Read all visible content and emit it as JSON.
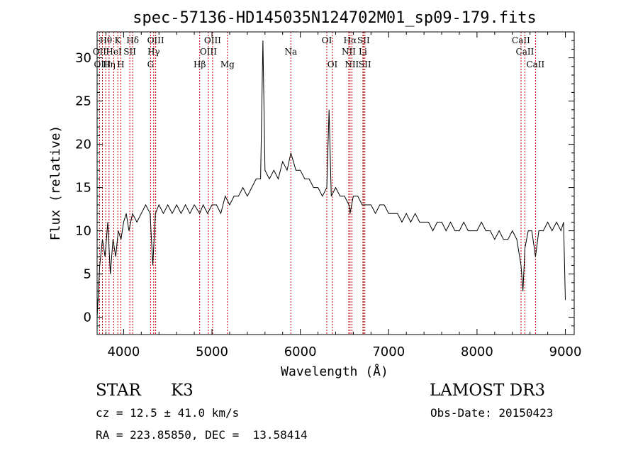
{
  "chart_data": {
    "type": "line",
    "title": "spec-57136-HD145035N124702M01_sp09-179.fits",
    "xlabel": "Wavelength (Å)",
    "ylabel": "Flux (relative)",
    "xlim": [
      3700,
      9100
    ],
    "ylim": [
      -2,
      33
    ],
    "xticks": [
      4000,
      5000,
      6000,
      7000,
      8000,
      9000
    ],
    "yticks": [
      0,
      5,
      10,
      15,
      20,
      25,
      30
    ],
    "grid": false,
    "legend": "none",
    "series": [
      {
        "name": "flux",
        "x": [
          3700,
          3730,
          3760,
          3790,
          3820,
          3850,
          3880,
          3910,
          3940,
          3970,
          4000,
          4030,
          4060,
          4100,
          4150,
          4200,
          4250,
          4300,
          4330,
          4360,
          4400,
          4450,
          4500,
          4550,
          4600,
          4650,
          4700,
          4750,
          4800,
          4861,
          4900,
          4950,
          5000,
          5050,
          5100,
          5150,
          5200,
          5250,
          5300,
          5350,
          5400,
          5450,
          5500,
          5550,
          5577,
          5600,
          5650,
          5700,
          5750,
          5800,
          5850,
          5893,
          5950,
          6000,
          6050,
          6100,
          6150,
          6200,
          6250,
          6300,
          6325,
          6350,
          6400,
          6450,
          6500,
          6550,
          6563,
          6600,
          6650,
          6700,
          6750,
          6800,
          6850,
          6900,
          6950,
          7000,
          7050,
          7100,
          7150,
          7200,
          7250,
          7300,
          7350,
          7400,
          7450,
          7500,
          7550,
          7600,
          7650,
          7700,
          7750,
          7800,
          7850,
          7900,
          7950,
          8000,
          8050,
          8100,
          8150,
          8200,
          8250,
          8300,
          8350,
          8400,
          8450,
          8498,
          8520,
          8542,
          8580,
          8620,
          8662,
          8700,
          8750,
          8800,
          8850,
          8900,
          8950,
          8980,
          9000
        ],
        "y": [
          0,
          6,
          9,
          7,
          11,
          5,
          9,
          7,
          10,
          9,
          11,
          12,
          10,
          12,
          11,
          12,
          13,
          12,
          6,
          12,
          13,
          12,
          13,
          12,
          13,
          12,
          13,
          12,
          13,
          12,
          13,
          12,
          13,
          13,
          12,
          14,
          13,
          14,
          14,
          15,
          14,
          15,
          16,
          16,
          32,
          17,
          16,
          17,
          16,
          18,
          17,
          19,
          17,
          17,
          16,
          16,
          15,
          15,
          14,
          15,
          24,
          14,
          15,
          14,
          14,
          13,
          12,
          14,
          14,
          13,
          13,
          13,
          12,
          13,
          13,
          12,
          12,
          12,
          11,
          12,
          11,
          12,
          11,
          11,
          11,
          10,
          11,
          11,
          10,
          11,
          10,
          10,
          11,
          10,
          10,
          10,
          11,
          10,
          10,
          9,
          10,
          9,
          9,
          10,
          9,
          6,
          3,
          8,
          10,
          10,
          7,
          10,
          10,
          11,
          10,
          11,
          10,
          11,
          2
        ]
      }
    ],
    "line_markers": [
      {
        "label": "Hθ",
        "x": 3798,
        "row": 1
      },
      {
        "label": "OII",
        "x": 3727,
        "row": 2
      },
      {
        "label": "OIII",
        "x": 3760,
        "row": 3
      },
      {
        "label": "Hη",
        "x": 3835,
        "row": 3
      },
      {
        "label": "HeI",
        "x": 3889,
        "row": 2
      },
      {
        "label": "K",
        "x": 3934,
        "row": 1
      },
      {
        "label": "H",
        "x": 3968,
        "row": 3
      },
      {
        "label": "SII",
        "x": 4070,
        "row": 2
      },
      {
        "label": "Hδ",
        "x": 4102,
        "row": 1
      },
      {
        "label": "G",
        "x": 4305,
        "row": 3
      },
      {
        "label": "Hγ",
        "x": 4340,
        "row": 2
      },
      {
        "label": "OIII",
        "x": 4363,
        "row": 1
      },
      {
        "label": "Hβ",
        "x": 4861,
        "row": 3
      },
      {
        "label": "OIII",
        "x": 4959,
        "row": 2
      },
      {
        "label": "OIII",
        "x": 5007,
        "row": 1
      },
      {
        "label": "Mg",
        "x": 5175,
        "row": 3
      },
      {
        "label": "Na",
        "x": 5893,
        "row": 2
      },
      {
        "label": "OI",
        "x": 6300,
        "row": 1
      },
      {
        "label": "OI",
        "x": 6364,
        "row": 3
      },
      {
        "label": "NII",
        "x": 6548,
        "row": 2
      },
      {
        "label": "Hα",
        "x": 6563,
        "row": 1
      },
      {
        "label": "NII",
        "x": 6583,
        "row": 3
      },
      {
        "label": "SII",
        "x": 6716,
        "row": 1
      },
      {
        "label": "Li",
        "x": 6708,
        "row": 2
      },
      {
        "label": "SII",
        "x": 6731,
        "row": 3
      },
      {
        "label": "CaII",
        "x": 8498,
        "row": 1
      },
      {
        "label": "CaII",
        "x": 8542,
        "row": 2
      },
      {
        "label": "CaII",
        "x": 8662,
        "row": 3
      }
    ]
  },
  "info": {
    "object_class": "STAR",
    "subclass": "K3",
    "survey": "LAMOST DR3",
    "cz": "cz = 12.5 ± 41.0 km/s",
    "obs_date": "Obs-Date: 20150423",
    "coords": "RA = 223.85850, DEC =  13.58414"
  },
  "colors": {
    "line": "#000000",
    "marker": "#c00000",
    "background": "#ffffff"
  }
}
